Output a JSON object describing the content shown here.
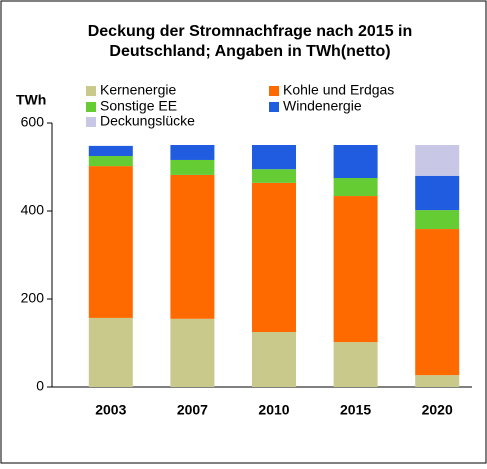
{
  "chart_data": {
    "type": "stacked_bar",
    "title": [
      "Deckung der Stromnachfrage nach 2015 in",
      "Deutschland; Angaben in TWh(netto)"
    ],
    "y_label": "TWh",
    "categories": [
      "2003",
      "2007",
      "2010",
      "2015",
      "2020"
    ],
    "series": [
      {
        "name": "Kernenergie",
        "color": "#c9c98c",
        "values": [
          157,
          155,
          125,
          102,
          27
        ]
      },
      {
        "name": "Kohle und Erdgas",
        "color": "#ff6a00",
        "values": [
          345,
          327,
          339,
          332,
          332
        ]
      },
      {
        "name": "Sonstige EE",
        "color": "#66cc33",
        "values": [
          23,
          34,
          31,
          41,
          43
        ]
      },
      {
        "name": "Windenergie",
        "color": "#1f5ce0",
        "values": [
          23,
          34,
          55,
          75,
          78
        ]
      },
      {
        "name": "Deckungslücke",
        "color": "#c8c8e6",
        "values": [
          null,
          null,
          null,
          null,
          70
        ]
      }
    ],
    "ylim": [
      0,
      600
    ],
    "yticks": [
      0,
      200,
      400,
      600
    ]
  }
}
